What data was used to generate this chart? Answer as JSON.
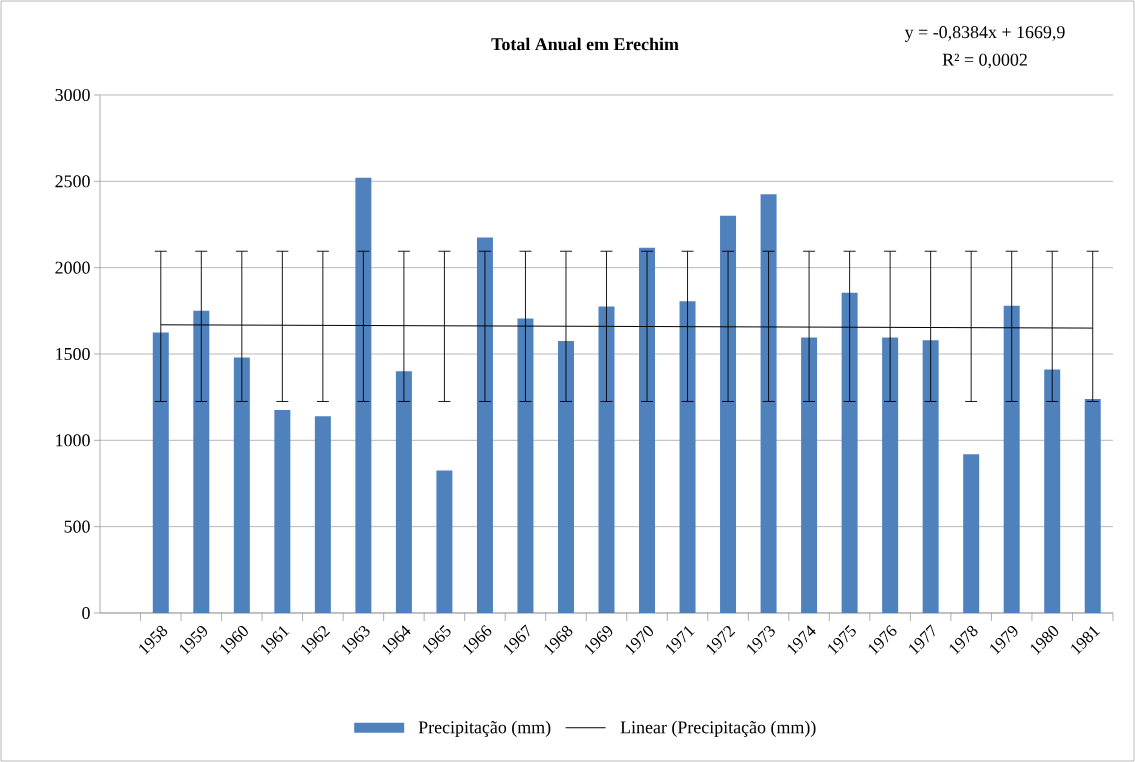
{
  "chart_data": {
    "type": "bar",
    "title": "Total Anual em Erechim",
    "categories": [
      "1958",
      "1959",
      "1960",
      "1961",
      "1962",
      "1963",
      "1964",
      "1965",
      "1966",
      "1967",
      "1968",
      "1969",
      "1970",
      "1971",
      "1972",
      "1973",
      "1974",
      "1975",
      "1976",
      "1977",
      "1978",
      "1979",
      "1980",
      "1981"
    ],
    "series": [
      {
        "name": "Precipitação (mm)",
        "color": "#4f81bd",
        "values": [
          1625,
          1750,
          1480,
          1175,
          1140,
          2520,
          1400,
          825,
          2175,
          1705,
          1575,
          1775,
          2115,
          1805,
          2300,
          2425,
          1595,
          1855,
          1595,
          1580,
          920,
          1780,
          1410,
          1240
        ],
        "errors": [
          [
            1225,
            2095
          ],
          [
            1225,
            2095
          ],
          [
            1225,
            2095
          ],
          [
            1225,
            2095
          ],
          [
            1225,
            2095
          ],
          [
            1225,
            2095
          ],
          [
            1225,
            2095
          ],
          [
            1225,
            2095
          ],
          [
            1225,
            2095
          ],
          [
            1225,
            2095
          ],
          [
            1225,
            2095
          ],
          [
            1225,
            2095
          ],
          [
            1225,
            2095
          ],
          [
            1225,
            2095
          ],
          [
            1225,
            2095
          ],
          [
            1225,
            2095
          ],
          [
            1225,
            2095
          ],
          [
            1225,
            2095
          ],
          [
            1225,
            2095
          ],
          [
            1225,
            2095
          ],
          [
            1225,
            2095
          ],
          [
            1225,
            2095
          ],
          [
            1225,
            2095
          ],
          [
            1225,
            2095
          ]
        ]
      },
      {
        "name": "Linear (Precipitação (mm))",
        "type": "line",
        "color": "#000000",
        "values": [
          1669,
          null,
          null,
          null,
          null,
          null,
          null,
          null,
          null,
          null,
          null,
          null,
          null,
          null,
          null,
          null,
          null,
          null,
          null,
          null,
          null,
          null,
          null,
          1650
        ]
      }
    ],
    "ylim": [
      0,
      3000
    ],
    "yticks": [
      0,
      500,
      1000,
      1500,
      2000,
      2500,
      3000
    ],
    "grid": "y",
    "legend": "bottom",
    "annotations": [
      "y = -0,8384x + 1669,9",
      "R² = 0,0002"
    ]
  }
}
